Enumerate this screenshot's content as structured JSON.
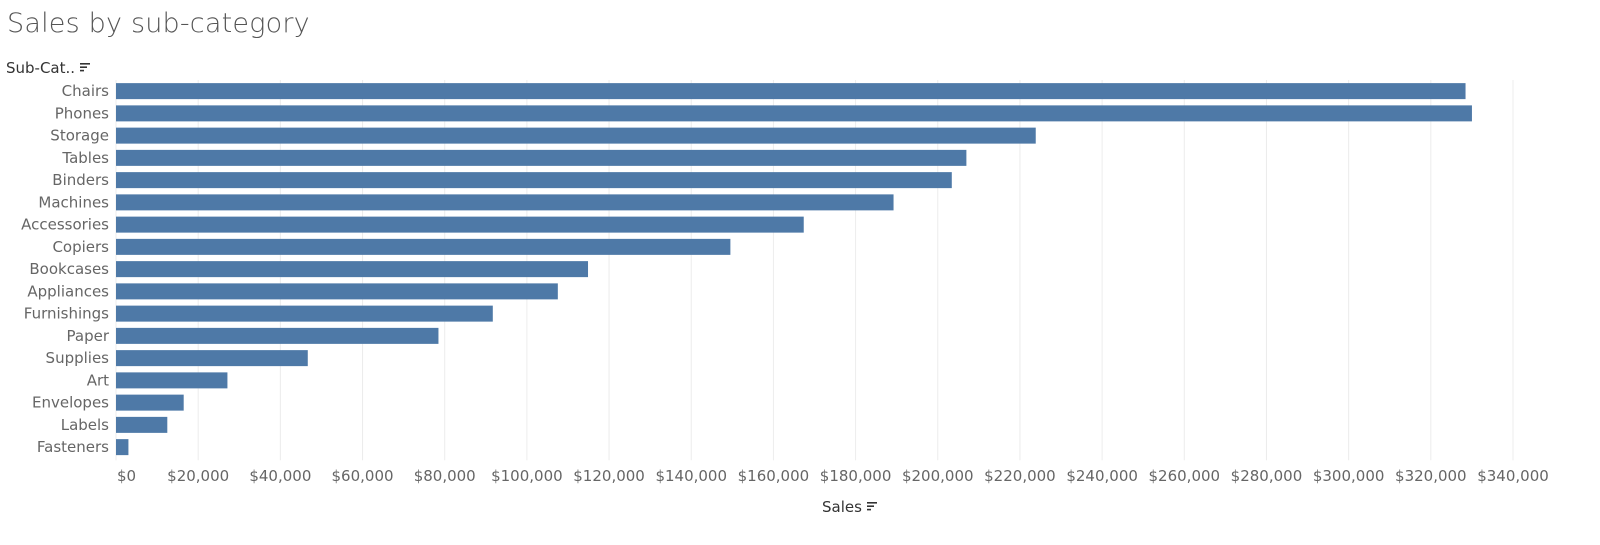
{
  "title": "Sales by sub-category",
  "row_header": "Sub-Cat..",
  "x_axis_title": "Sales",
  "icons": {
    "row_sort": "sort-descending-icon",
    "axis_sort": "sort-descending-icon"
  },
  "colors": {
    "bar": "#4e79a7",
    "gridline": "#ececec"
  },
  "chart_data": {
    "type": "bar",
    "orientation": "horizontal",
    "title": "Sales by sub-category",
    "xlabel": "Sales",
    "ylabel": "Sub-Cat..",
    "categories": [
      "Chairs",
      "Phones",
      "Storage",
      "Tables",
      "Binders",
      "Machines",
      "Accessories",
      "Copiers",
      "Bookcases",
      "Appliances",
      "Furnishings",
      "Paper",
      "Supplies",
      "Art",
      "Envelopes",
      "Labels",
      "Fasteners"
    ],
    "values": [
      328449,
      330007,
      223844,
      206966,
      203413,
      189239,
      167380,
      149528,
      114880,
      107532,
      91705,
      78479,
      46674,
      27119,
      16476,
      12486,
      3024
    ],
    "xlim": [
      0,
      340000
    ],
    "x_ticks": [
      0,
      20000,
      40000,
      60000,
      80000,
      100000,
      120000,
      140000,
      160000,
      180000,
      200000,
      220000,
      240000,
      260000,
      280000,
      300000,
      320000,
      340000
    ],
    "x_tick_labels": [
      "$0",
      "$20,000",
      "$40,000",
      "$60,000",
      "$80,000",
      "$100,000",
      "$120,000",
      "$140,000",
      "$160,000",
      "$180,000",
      "$200,000",
      "$220,000",
      "$240,000",
      "$260,000",
      "$280,000",
      "$300,000",
      "$320,000",
      "$340,000"
    ],
    "grid": true,
    "legend": "none"
  }
}
